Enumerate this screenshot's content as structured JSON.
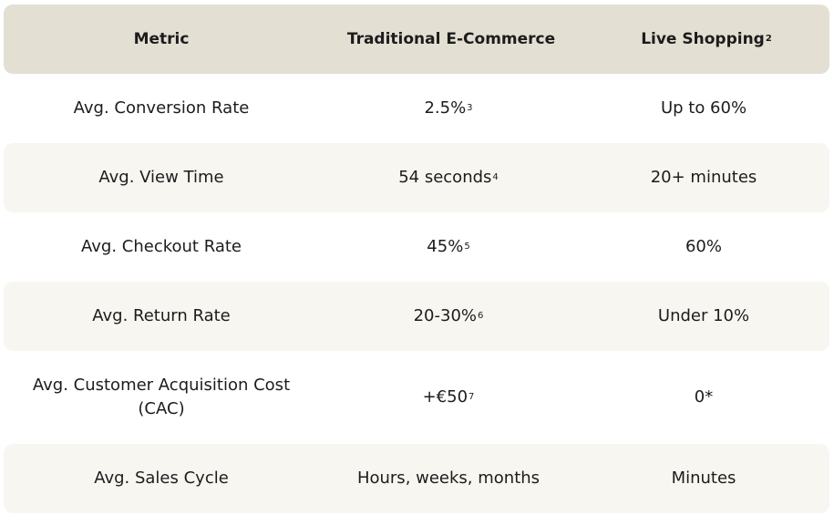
{
  "table": {
    "headers": {
      "metric": "Metric",
      "traditional": "Traditional E-Commerce",
      "live": "Live Shopping",
      "live_note": "2"
    },
    "rows": [
      {
        "metric": "Avg. Conversion Rate",
        "traditional": "2.5%",
        "traditional_note": "3",
        "live": "Up to 60%"
      },
      {
        "metric": "Avg. View Time",
        "traditional": "54 seconds",
        "traditional_note": "4",
        "live": "20+ minutes"
      },
      {
        "metric": "Avg. Checkout Rate",
        "traditional": "45%",
        "traditional_note": "5",
        "live": "60%"
      },
      {
        "metric": "Avg. Return Rate",
        "traditional": "20-30%",
        "traditional_note": "6",
        "live": "Under 10%"
      },
      {
        "metric": "Avg. Customer Acquisition Cost (CAC)",
        "traditional": "+€50",
        "traditional_note": "7",
        "live": "0*"
      },
      {
        "metric": "Avg. Sales Cycle",
        "traditional": "Hours, weeks, months",
        "live": "Minutes"
      }
    ]
  }
}
